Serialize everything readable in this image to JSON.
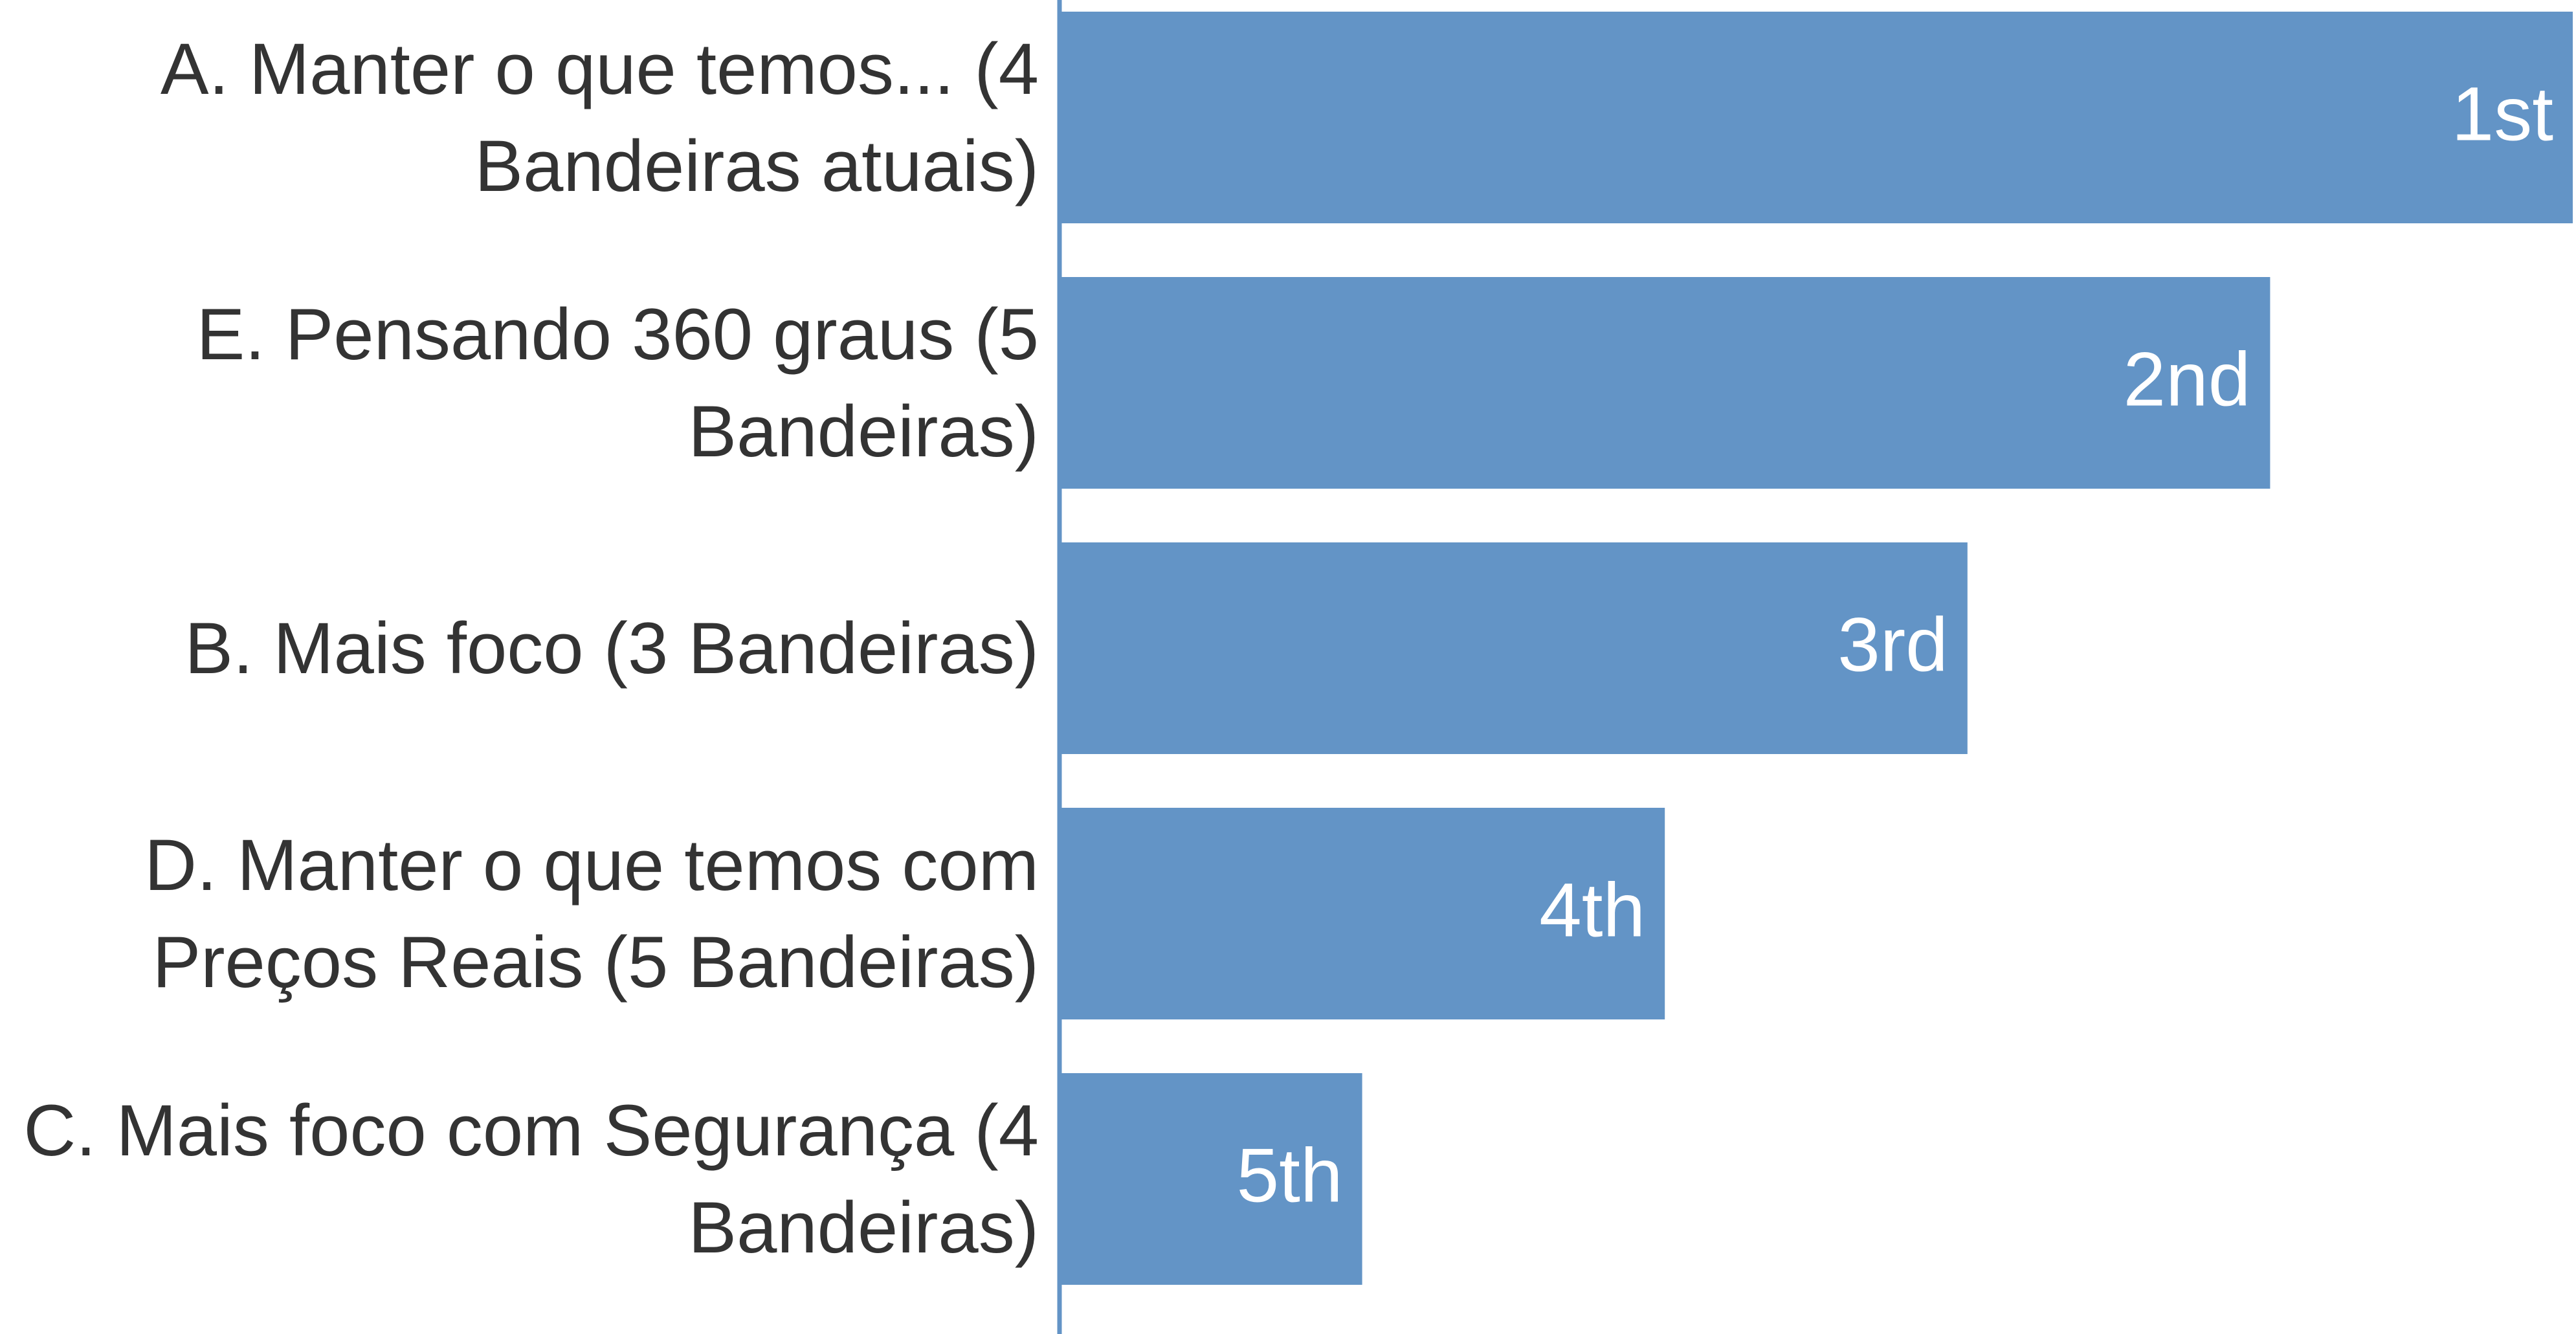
{
  "chart_data": {
    "type": "bar",
    "orientation": "horizontal",
    "categories": [
      "A. Manter o que temos... (4 Bandeiras atuais)",
      "E. Pensando 360 graus (5 Bandeiras)",
      "B. Mais foco (3 Bandeiras)",
      "D. Manter o que temos com Preços Reais (5 Bandeiras)",
      "C. Mais foco com Segurança (4 Bandeiras)"
    ],
    "values": [
      1,
      2,
      3,
      4,
      5
    ],
    "value_labels": [
      "1st",
      "2nd",
      "3rd",
      "4th",
      "5th"
    ],
    "color": "#6394c6",
    "xlim": [
      6,
      1
    ]
  }
}
